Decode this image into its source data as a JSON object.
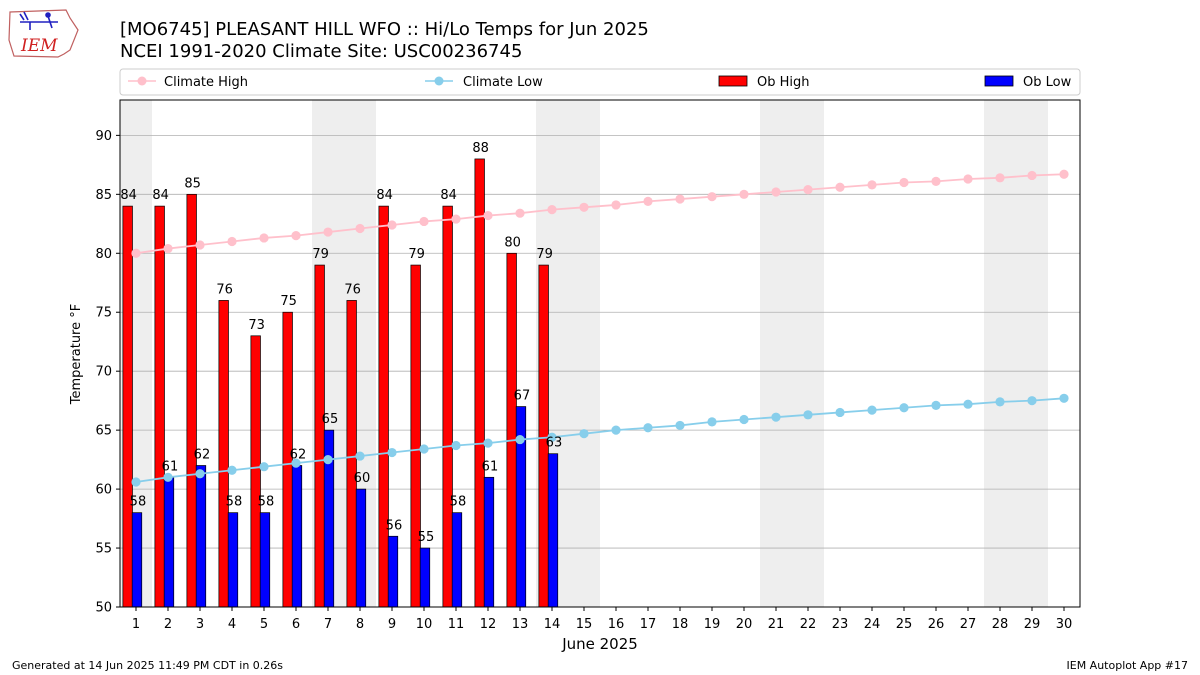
{
  "header": {
    "title_line1": "[MO6745] PLEASANT HILL WFO :: Hi/Lo Temps for Jun 2025",
    "title_line2": "NCEI 1991-2020 Climate Site: USC00236745",
    "logo_text": "IEM"
  },
  "footer": {
    "left": "Generated at 14 Jun 2025 11:49 PM CDT in 0.26s",
    "right": "IEM Autoplot App #17"
  },
  "colors": {
    "climate_high": "#ffc0cb",
    "climate_low": "#87ceeb",
    "ob_high": "#ff0000",
    "ob_low": "#0000ff",
    "weekend_shade": "#eeeeee",
    "grid": "#b0b0b0"
  },
  "chart_data": {
    "type": "bar",
    "title": "[MO6745] PLEASANT HILL WFO :: Hi/Lo Temps for Jun 2025",
    "subtitle": "NCEI 1991-2020 Climate Site: USC00236745",
    "xlabel": "June 2025",
    "ylabel": "Temperature °F",
    "ylim": [
      50,
      93
    ],
    "xlim": [
      0.5,
      30.5
    ],
    "yticks": [
      50,
      55,
      60,
      65,
      70,
      75,
      80,
      85,
      90
    ],
    "grid": true,
    "legend_position": "top",
    "days": [
      1,
      2,
      3,
      4,
      5,
      6,
      7,
      8,
      9,
      10,
      11,
      12,
      13,
      14,
      15,
      16,
      17,
      18,
      19,
      20,
      21,
      22,
      23,
      24,
      25,
      26,
      27,
      28,
      29,
      30
    ],
    "weekends": [
      1,
      7,
      8,
      14,
      15,
      21,
      22,
      28,
      29
    ],
    "series": [
      {
        "name": "Climate High",
        "kind": "line",
        "values": [
          80.0,
          80.4,
          80.7,
          81.0,
          81.3,
          81.5,
          81.8,
          82.1,
          82.4,
          82.7,
          82.9,
          83.2,
          83.4,
          83.7,
          83.9,
          84.1,
          84.4,
          84.6,
          84.8,
          85.0,
          85.2,
          85.4,
          85.6,
          85.8,
          86.0,
          86.1,
          86.3,
          86.4,
          86.6,
          86.7
        ]
      },
      {
        "name": "Climate Low",
        "kind": "line",
        "values": [
          60.6,
          61.0,
          61.3,
          61.6,
          61.9,
          62.2,
          62.5,
          62.8,
          63.1,
          63.4,
          63.7,
          63.9,
          64.2,
          64.4,
          64.7,
          65.0,
          65.2,
          65.4,
          65.7,
          65.9,
          66.1,
          66.3,
          66.5,
          66.7,
          66.9,
          67.1,
          67.2,
          67.4,
          67.5,
          67.7
        ]
      },
      {
        "name": "Ob High",
        "kind": "bar",
        "values": [
          84,
          84,
          85,
          76,
          73,
          75,
          79,
          76,
          84,
          79,
          84,
          88,
          80,
          79
        ]
      },
      {
        "name": "Ob Low",
        "kind": "bar",
        "values": [
          58,
          61,
          62,
          58,
          58,
          62,
          65,
          60,
          56,
          55,
          58,
          61,
          67,
          63
        ]
      }
    ]
  }
}
